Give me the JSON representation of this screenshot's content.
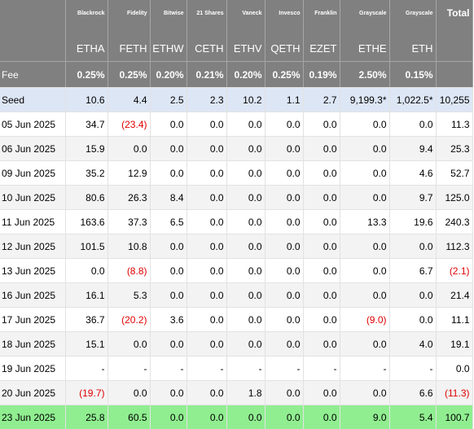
{
  "colors": {
    "header_bg": "#808080",
    "header_text": "#ffffff",
    "seed_row_bg": "#dde6f5",
    "alt_row_bg": "#f3f3f3",
    "latest_row_bg": "#90ee90",
    "negative_text": "#e00000"
  },
  "columns": [
    {
      "issuer": "",
      "ticker": "",
      "fee": "Fee"
    },
    {
      "issuer": "Blackrock",
      "ticker": "ETHA",
      "fee": "0.25%"
    },
    {
      "issuer": "Fidelity",
      "ticker": "FETH",
      "fee": "0.25%"
    },
    {
      "issuer": "Bitwise",
      "ticker": "ETHW",
      "fee": "0.20%"
    },
    {
      "issuer": "21 Shares",
      "ticker": "CETH",
      "fee": "0.21%"
    },
    {
      "issuer": "Vaneck",
      "ticker": "ETHV",
      "fee": "0.20%"
    },
    {
      "issuer": "Invesco",
      "ticker": "QETH",
      "fee": "0.25%"
    },
    {
      "issuer": "Franklin",
      "ticker": "EZET",
      "fee": "0.19%"
    },
    {
      "issuer": "Grayscale",
      "ticker": "ETHE",
      "fee": "2.50%"
    },
    {
      "issuer": "Grayscale",
      "ticker": "ETH",
      "fee": "0.15%"
    },
    {
      "issuer": "Total",
      "ticker": "",
      "fee": ""
    }
  ],
  "rows": [
    {
      "label": "Seed",
      "style": "seed",
      "cells": [
        "10.6",
        "4.4",
        "2.5",
        "2.3",
        "10.2",
        "1.1",
        "2.7",
        "9,199.3*",
        "1,022.5*",
        "10,255"
      ],
      "negative": [
        false,
        false,
        false,
        false,
        false,
        false,
        false,
        false,
        false,
        false
      ]
    },
    {
      "label": "05 Jun 2025",
      "style": "white",
      "cells": [
        "34.7",
        "(23.4)",
        "0.0",
        "0.0",
        "0.0",
        "0.0",
        "0.0",
        "0.0",
        "0.0",
        "11.3"
      ],
      "negative": [
        false,
        true,
        false,
        false,
        false,
        false,
        false,
        false,
        false,
        false
      ]
    },
    {
      "label": "06 Jun 2025",
      "style": "grey",
      "cells": [
        "15.9",
        "0.0",
        "0.0",
        "0.0",
        "0.0",
        "0.0",
        "0.0",
        "0.0",
        "9.4",
        "25.3"
      ],
      "negative": [
        false,
        false,
        false,
        false,
        false,
        false,
        false,
        false,
        false,
        false
      ]
    },
    {
      "label": "09 Jun 2025",
      "style": "white",
      "cells": [
        "35.2",
        "12.9",
        "0.0",
        "0.0",
        "0.0",
        "0.0",
        "0.0",
        "0.0",
        "4.6",
        "52.7"
      ],
      "negative": [
        false,
        false,
        false,
        false,
        false,
        false,
        false,
        false,
        false,
        false
      ]
    },
    {
      "label": "10 Jun 2025",
      "style": "grey",
      "cells": [
        "80.6",
        "26.3",
        "8.4",
        "0.0",
        "0.0",
        "0.0",
        "0.0",
        "0.0",
        "9.7",
        "125.0"
      ],
      "negative": [
        false,
        false,
        false,
        false,
        false,
        false,
        false,
        false,
        false,
        false
      ]
    },
    {
      "label": "11 Jun 2025",
      "style": "white",
      "cells": [
        "163.6",
        "37.3",
        "6.5",
        "0.0",
        "0.0",
        "0.0",
        "0.0",
        "13.3",
        "19.6",
        "240.3"
      ],
      "negative": [
        false,
        false,
        false,
        false,
        false,
        false,
        false,
        false,
        false,
        false
      ]
    },
    {
      "label": "12 Jun 2025",
      "style": "grey",
      "cells": [
        "101.5",
        "10.8",
        "0.0",
        "0.0",
        "0.0",
        "0.0",
        "0.0",
        "0.0",
        "0.0",
        "112.3"
      ],
      "negative": [
        false,
        false,
        false,
        false,
        false,
        false,
        false,
        false,
        false,
        false
      ]
    },
    {
      "label": "13 Jun 2025",
      "style": "white",
      "cells": [
        "0.0",
        "(8.8)",
        "0.0",
        "0.0",
        "0.0",
        "0.0",
        "0.0",
        "0.0",
        "6.7",
        "(2.1)"
      ],
      "negative": [
        false,
        true,
        false,
        false,
        false,
        false,
        false,
        false,
        false,
        true
      ]
    },
    {
      "label": "16 Jun 2025",
      "style": "grey",
      "cells": [
        "16.1",
        "5.3",
        "0.0",
        "0.0",
        "0.0",
        "0.0",
        "0.0",
        "0.0",
        "0.0",
        "21.4"
      ],
      "negative": [
        false,
        false,
        false,
        false,
        false,
        false,
        false,
        false,
        false,
        false
      ]
    },
    {
      "label": "17 Jun 2025",
      "style": "white",
      "cells": [
        "36.7",
        "(20.2)",
        "3.6",
        "0.0",
        "0.0",
        "0.0",
        "0.0",
        "(9.0)",
        "0.0",
        "11.1"
      ],
      "negative": [
        false,
        true,
        false,
        false,
        false,
        false,
        false,
        true,
        false,
        false
      ]
    },
    {
      "label": "18 Jun 2025",
      "style": "grey",
      "cells": [
        "15.1",
        "0.0",
        "0.0",
        "0.0",
        "0.0",
        "0.0",
        "0.0",
        "0.0",
        "4.0",
        "19.1"
      ],
      "negative": [
        false,
        false,
        false,
        false,
        false,
        false,
        false,
        false,
        false,
        false
      ]
    },
    {
      "label": "19 Jun 2025",
      "style": "white",
      "cells": [
        "-",
        "-",
        "-",
        "-",
        "-",
        "-",
        "-",
        "-",
        "-",
        "0.0"
      ],
      "negative": [
        false,
        false,
        false,
        false,
        false,
        false,
        false,
        false,
        false,
        false
      ]
    },
    {
      "label": "20 Jun 2025",
      "style": "grey",
      "cells": [
        "(19.7)",
        "0.0",
        "0.0",
        "0.0",
        "1.8",
        "0.0",
        "0.0",
        "0.0",
        "6.6",
        "(11.3)"
      ],
      "negative": [
        true,
        false,
        false,
        false,
        false,
        false,
        false,
        false,
        false,
        true
      ]
    },
    {
      "label": "23 Jun 2025",
      "style": "highlight",
      "cells": [
        "25.8",
        "60.5",
        "0.0",
        "0.0",
        "0.0",
        "0.0",
        "0.0",
        "9.0",
        "5.4",
        "100.7"
      ],
      "negative": [
        false,
        false,
        false,
        false,
        false,
        false,
        false,
        false,
        false,
        false
      ]
    }
  ]
}
